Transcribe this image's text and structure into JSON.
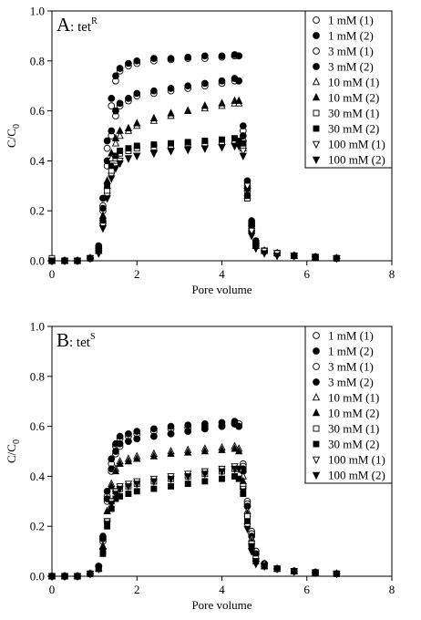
{
  "chart_data": [
    {
      "type": "scatter",
      "panel": "A",
      "title": ": tet",
      "title_sup": "R",
      "ylabel": "C/C",
      "ylabel_sub": "0",
      "xlabel": "Pore volume",
      "xlim": [
        0,
        8
      ],
      "xticks": [
        0,
        2,
        4,
        6,
        8
      ],
      "ylim": [
        0,
        1
      ],
      "yticks": [
        {
          "value": 0,
          "label": "0.0"
        },
        0.2,
        0.4,
        0.6,
        0.8,
        {
          "value": 1,
          "label": "1.0"
        }
      ],
      "legend": "upper right",
      "x": [
        0,
        0.3,
        0.6,
        0.9,
        1.1,
        1.2,
        1.3,
        1.4,
        1.5,
        1.6,
        1.8,
        2.0,
        2.4,
        2.8,
        3.2,
        3.6,
        4.0,
        4.3,
        4.4,
        4.5,
        4.6,
        4.7,
        4.8,
        5.0,
        5.3,
        5.7,
        6.2,
        6.7
      ],
      "series": [
        {
          "name": "1 mM (1)",
          "marker": "circle",
          "filled": false,
          "color": "#000000",
          "values": [
            0,
            0,
            0,
            0.01,
            0.05,
            0.22,
            0.45,
            0.62,
            0.72,
            0.76,
            0.78,
            0.79,
            0.8,
            0.805,
            0.81,
            0.81,
            0.815,
            0.82,
            0.82,
            0.52,
            0.3,
            0.15,
            0.07,
            0.04,
            0.03,
            0.02,
            0.015,
            0.01
          ]
        },
        {
          "name": "1 mM (2)",
          "marker": "circle",
          "filled": true,
          "color": "#000000",
          "values": [
            0,
            0,
            0,
            0.01,
            0.06,
            0.25,
            0.48,
            0.65,
            0.74,
            0.77,
            0.79,
            0.8,
            0.81,
            0.81,
            0.815,
            0.82,
            0.82,
            0.825,
            0.82,
            0.54,
            0.32,
            0.16,
            0.08,
            0.04,
            0.03,
            0.02,
            0.015,
            0.01
          ]
        },
        {
          "name": "3 mM (1)",
          "marker": "circle",
          "filled": false,
          "color": "#000000",
          "values": [
            0,
            0,
            0,
            0.01,
            0.05,
            0.2,
            0.38,
            0.5,
            0.58,
            0.62,
            0.64,
            0.66,
            0.67,
            0.68,
            0.69,
            0.7,
            0.71,
            0.72,
            0.72,
            0.48,
            0.28,
            0.14,
            0.07,
            0.04,
            0.03,
            0.02,
            0.015,
            0.01
          ]
        },
        {
          "name": "3 mM (2)",
          "marker": "circle",
          "filled": true,
          "color": "#000000",
          "values": [
            0,
            0,
            0,
            0.01,
            0.05,
            0.21,
            0.4,
            0.52,
            0.6,
            0.63,
            0.65,
            0.67,
            0.68,
            0.69,
            0.7,
            0.71,
            0.72,
            0.73,
            0.72,
            0.5,
            0.29,
            0.14,
            0.07,
            0.04,
            0.03,
            0.02,
            0.015,
            0.01
          ]
        },
        {
          "name": "10 mM (1)",
          "marker": "triangle",
          "filled": false,
          "color": "#000000",
          "values": [
            0,
            0,
            0,
            0.01,
            0.04,
            0.17,
            0.3,
            0.41,
            0.47,
            0.5,
            0.52,
            0.54,
            0.56,
            0.58,
            0.6,
            0.61,
            0.62,
            0.63,
            0.63,
            0.45,
            0.26,
            0.13,
            0.06,
            0.04,
            0.03,
            0.02,
            0.015,
            0.01
          ]
        },
        {
          "name": "10 mM (2)",
          "marker": "triangle",
          "filled": true,
          "color": "#000000",
          "values": [
            0,
            0,
            0,
            0.01,
            0.04,
            0.18,
            0.32,
            0.43,
            0.49,
            0.52,
            0.53,
            0.55,
            0.57,
            0.59,
            0.6,
            0.62,
            0.63,
            0.64,
            0.64,
            0.46,
            0.27,
            0.13,
            0.06,
            0.04,
            0.03,
            0.02,
            0.015,
            0.01
          ]
        },
        {
          "name": "30 mM (1)",
          "marker": "square",
          "filled": false,
          "color": "#000000",
          "values": [
            0.01,
            0,
            0,
            0.01,
            0.04,
            0.15,
            0.28,
            0.36,
            0.41,
            0.43,
            0.44,
            0.45,
            0.455,
            0.46,
            0.47,
            0.47,
            0.475,
            0.48,
            0.48,
            0.46,
            0.25,
            0.12,
            0.06,
            0.04,
            0.03,
            0.02,
            0.015,
            0.01
          ]
        },
        {
          "name": "30 mM (2)",
          "marker": "square",
          "filled": true,
          "color": "#000000",
          "values": [
            0,
            0,
            0,
            0.01,
            0.04,
            0.16,
            0.3,
            0.38,
            0.42,
            0.44,
            0.45,
            0.46,
            0.465,
            0.47,
            0.475,
            0.48,
            0.485,
            0.49,
            0.48,
            0.47,
            0.26,
            0.12,
            0.06,
            0.04,
            0.03,
            0.02,
            0.015,
            0.01
          ]
        },
        {
          "name": "100 mM (1)",
          "marker": "triangle-down",
          "filled": false,
          "color": "#000000",
          "values": [
            0,
            0,
            0,
            0.01,
            0.03,
            0.14,
            0.26,
            0.34,
            0.38,
            0.4,
            0.41,
            0.42,
            0.43,
            0.44,
            0.445,
            0.45,
            0.455,
            0.46,
            0.46,
            0.44,
            0.3,
            0.12,
            0.05,
            0.04,
            0.03,
            0.02,
            0.015,
            0.01
          ]
        },
        {
          "name": "100 mM (2)",
          "marker": "triangle-down",
          "filled": true,
          "color": "#000000",
          "values": [
            0,
            0,
            0,
            0.01,
            0.03,
            0.13,
            0.25,
            0.33,
            0.37,
            0.39,
            0.41,
            0.42,
            0.43,
            0.44,
            0.445,
            0.45,
            0.455,
            0.46,
            0.46,
            0.42,
            0.28,
            0.1,
            0.05,
            0.03,
            0.02,
            0.02,
            0.015,
            0.01
          ]
        }
      ]
    },
    {
      "type": "scatter",
      "panel": "B",
      "title": ": tet",
      "title_sup": "S",
      "ylabel": "C/C",
      "ylabel_sub": "0",
      "xlabel": "Pore volume",
      "xlim": [
        0,
        8
      ],
      "xticks": [
        0,
        2,
        4,
        6,
        8
      ],
      "ylim": [
        0,
        1
      ],
      "yticks": [
        {
          "value": 0,
          "label": "0.0"
        },
        0.2,
        0.4,
        0.6,
        0.8,
        {
          "value": 1,
          "label": "1.0"
        }
      ],
      "legend": "upper right",
      "x": [
        0,
        0.3,
        0.6,
        0.9,
        1.1,
        1.2,
        1.3,
        1.4,
        1.5,
        1.6,
        1.8,
        2.0,
        2.4,
        2.8,
        3.2,
        3.6,
        4.0,
        4.3,
        4.4,
        4.5,
        4.6,
        4.7,
        4.8,
        5.0,
        5.3,
        5.7,
        6.2,
        6.7
      ],
      "series": [
        {
          "name": "1 mM (1)",
          "marker": "circle",
          "filled": false,
          "color": "#000000",
          "values": [
            0,
            0,
            0,
            0.01,
            0.04,
            0.15,
            0.32,
            0.45,
            0.52,
            0.55,
            0.56,
            0.57,
            0.58,
            0.59,
            0.595,
            0.6,
            0.605,
            0.61,
            0.61,
            0.45,
            0.3,
            0.18,
            0.1,
            0.05,
            0.03,
            0.02,
            0.015,
            0.01
          ]
        },
        {
          "name": "1 mM (2)",
          "marker": "circle",
          "filled": true,
          "color": "#000000",
          "values": [
            0,
            0,
            0,
            0.01,
            0.04,
            0.16,
            0.34,
            0.47,
            0.53,
            0.56,
            0.57,
            0.58,
            0.59,
            0.6,
            0.605,
            0.61,
            0.615,
            0.62,
            0.6,
            0.42,
            0.28,
            0.17,
            0.09,
            0.05,
            0.03,
            0.02,
            0.015,
            0.01
          ]
        },
        {
          "name": "3 mM (1)",
          "marker": "circle",
          "filled": false,
          "color": "#000000",
          "values": [
            0,
            0,
            0,
            0.01,
            0.04,
            0.14,
            0.3,
            0.42,
            0.49,
            0.52,
            0.54,
            0.55,
            0.56,
            0.57,
            0.58,
            0.59,
            0.6,
            0.61,
            0.6,
            0.44,
            0.29,
            0.17,
            0.1,
            0.05,
            0.03,
            0.02,
            0.015,
            0.01
          ]
        },
        {
          "name": "3 mM (2)",
          "marker": "circle",
          "filled": true,
          "color": "#000000",
          "values": [
            0,
            0,
            0,
            0.01,
            0.04,
            0.15,
            0.31,
            0.43,
            0.5,
            0.53,
            0.54,
            0.55,
            0.56,
            0.57,
            0.58,
            0.59,
            0.6,
            0.61,
            0.6,
            0.43,
            0.28,
            0.16,
            0.09,
            0.05,
            0.03,
            0.02,
            0.015,
            0.01
          ]
        },
        {
          "name": "10 mM (1)",
          "marker": "triangle",
          "filled": false,
          "color": "#000000",
          "values": [
            0,
            0,
            0,
            0.01,
            0.03,
            0.12,
            0.26,
            0.37,
            0.43,
            0.46,
            0.47,
            0.48,
            0.49,
            0.5,
            0.505,
            0.51,
            0.515,
            0.52,
            0.51,
            0.4,
            0.26,
            0.15,
            0.08,
            0.05,
            0.03,
            0.02,
            0.015,
            0.01
          ]
        },
        {
          "name": "10 mM (2)",
          "marker": "triangle",
          "filled": true,
          "color": "#000000",
          "values": [
            0,
            0,
            0,
            0.01,
            0.03,
            0.12,
            0.26,
            0.36,
            0.42,
            0.45,
            0.46,
            0.47,
            0.48,
            0.49,
            0.495,
            0.5,
            0.505,
            0.51,
            0.5,
            0.38,
            0.25,
            0.14,
            0.08,
            0.04,
            0.03,
            0.02,
            0.015,
            0.01
          ]
        },
        {
          "name": "30 mM (1)",
          "marker": "square",
          "filled": false,
          "color": "#000000",
          "values": [
            0,
            0,
            0,
            0.01,
            0.03,
            0.1,
            0.22,
            0.3,
            0.34,
            0.35,
            0.36,
            0.37,
            0.38,
            0.39,
            0.4,
            0.41,
            0.42,
            0.43,
            0.43,
            0.36,
            0.24,
            0.13,
            0.07,
            0.04,
            0.03,
            0.02,
            0.015,
            0.01
          ]
        },
        {
          "name": "30 mM (2)",
          "marker": "square",
          "filled": true,
          "color": "#000000",
          "values": [
            0,
            0,
            0,
            0.01,
            0.03,
            0.09,
            0.2,
            0.27,
            0.31,
            0.32,
            0.33,
            0.34,
            0.35,
            0.36,
            0.37,
            0.38,
            0.39,
            0.4,
            0.39,
            0.33,
            0.22,
            0.12,
            0.06,
            0.04,
            0.03,
            0.02,
            0.015,
            0.01
          ]
        },
        {
          "name": "100 mM (1)",
          "marker": "triangle-down",
          "filled": false,
          "color": "#000000",
          "values": [
            0,
            0,
            0,
            0.01,
            0.03,
            0.1,
            0.22,
            0.3,
            0.34,
            0.36,
            0.37,
            0.38,
            0.39,
            0.4,
            0.41,
            0.42,
            0.43,
            0.44,
            0.43,
            0.35,
            0.2,
            0.1,
            0.05,
            0.04,
            0.03,
            0.02,
            0.015,
            0.01
          ]
        },
        {
          "name": "100 mM (2)",
          "marker": "triangle-down",
          "filled": true,
          "color": "#000000",
          "values": [
            0,
            0,
            0,
            0.01,
            0.03,
            0.1,
            0.21,
            0.29,
            0.33,
            0.35,
            0.36,
            0.37,
            0.38,
            0.39,
            0.4,
            0.41,
            0.42,
            0.43,
            0.43,
            0.34,
            0.19,
            0.1,
            0.05,
            0.04,
            0.03,
            0.02,
            0.015,
            0.01
          ]
        }
      ]
    }
  ]
}
